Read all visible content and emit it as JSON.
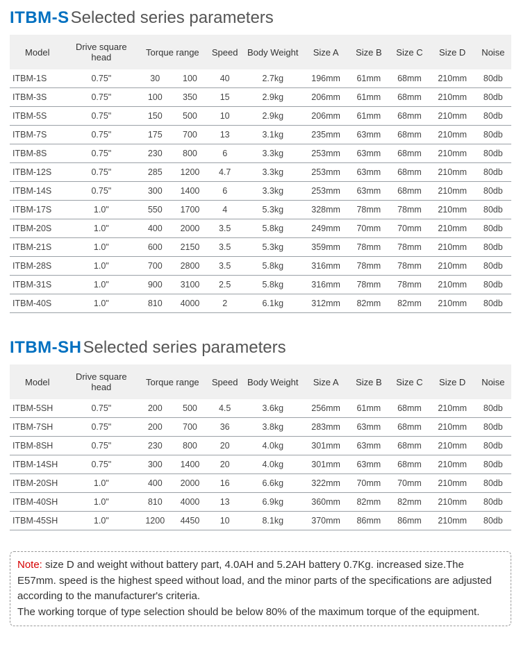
{
  "colors": {
    "heading_prefix": "#0070c0",
    "heading_suffix": "#555555",
    "header_bg": "#f0f0f0",
    "row_border": "#9aa0a6",
    "note_border": "#999999",
    "note_label": "#d60000",
    "text": "#333333"
  },
  "typography": {
    "heading_fontsize": 24,
    "table_fontsize": 13,
    "cell_fontsize": 12.5,
    "note_fontsize": 15
  },
  "columns": [
    "Model",
    "Drive square head",
    "Torque range",
    "Speed",
    "Body Weight",
    "Size A",
    "Size B",
    "Size C",
    "Size D",
    "Noise"
  ],
  "section1": {
    "prefix": "ITBM-S",
    "suffix": "Selected series parameters",
    "rows": [
      {
        "model": "ITBM-1S",
        "drive": "0.75\"",
        "tmin": "30",
        "tmax": "100",
        "speed": "40",
        "weight": "2.7kg",
        "a": "196mm",
        "b": "61mm",
        "c": "68mm",
        "d": "210mm",
        "noise": "80db"
      },
      {
        "model": "ITBM-3S",
        "drive": "0.75\"",
        "tmin": "100",
        "tmax": "350",
        "speed": "15",
        "weight": "2.9kg",
        "a": "206mm",
        "b": "61mm",
        "c": "68mm",
        "d": "210mm",
        "noise": "80db"
      },
      {
        "model": "ITBM-5S",
        "drive": "0.75\"",
        "tmin": "150",
        "tmax": "500",
        "speed": "10",
        "weight": "2.9kg",
        "a": "206mm",
        "b": "61mm",
        "c": "68mm",
        "d": "210mm",
        "noise": "80db"
      },
      {
        "model": "ITBM-7S",
        "drive": "0.75\"",
        "tmin": "175",
        "tmax": "700",
        "speed": "13",
        "weight": "3.1kg",
        "a": "235mm",
        "b": "63mm",
        "c": "68mm",
        "d": "210mm",
        "noise": "80db"
      },
      {
        "model": "ITBM-8S",
        "drive": "0.75\"",
        "tmin": "230",
        "tmax": "800",
        "speed": "6",
        "weight": "3.3kg",
        "a": "253mm",
        "b": "63mm",
        "c": "68mm",
        "d": "210mm",
        "noise": "80db"
      },
      {
        "model": "ITBM-12S",
        "drive": "0.75\"",
        "tmin": "285",
        "tmax": "1200",
        "speed": "4.7",
        "weight": "3.3kg",
        "a": "253mm",
        "b": "63mm",
        "c": "68mm",
        "d": "210mm",
        "noise": "80db"
      },
      {
        "model": "ITBM-14S",
        "drive": "0.75\"",
        "tmin": "300",
        "tmax": "1400",
        "speed": "6",
        "weight": "3.3kg",
        "a": "253mm",
        "b": "63mm",
        "c": "68mm",
        "d": "210mm",
        "noise": "80db"
      },
      {
        "model": "ITBM-17S",
        "drive": "1.0\"",
        "tmin": "550",
        "tmax": "1700",
        "speed": "4",
        "weight": "5.3kg",
        "a": "328mm",
        "b": "78mm",
        "c": "78mm",
        "d": "210mm",
        "noise": "80db"
      },
      {
        "model": "ITBM-20S",
        "drive": "1.0\"",
        "tmin": "400",
        "tmax": "2000",
        "speed": "3.5",
        "weight": "5.8kg",
        "a": "249mm",
        "b": "70mm",
        "c": "70mm",
        "d": "210mm",
        "noise": "80db"
      },
      {
        "model": "ITBM-21S",
        "drive": "1.0\"",
        "tmin": "600",
        "tmax": "2150",
        "speed": "3.5",
        "weight": "5.3kg",
        "a": "359mm",
        "b": "78mm",
        "c": "78mm",
        "d": "210mm",
        "noise": "80db"
      },
      {
        "model": "ITBM-28S",
        "drive": "1.0\"",
        "tmin": "700",
        "tmax": "2800",
        "speed": "3.5",
        "weight": "5.8kg",
        "a": "316mm",
        "b": "78mm",
        "c": "78mm",
        "d": "210mm",
        "noise": "80db"
      },
      {
        "model": "ITBM-31S",
        "drive": "1.0\"",
        "tmin": "900",
        "tmax": "3100",
        "speed": "2.5",
        "weight": "5.8kg",
        "a": "316mm",
        "b": "78mm",
        "c": "78mm",
        "d": "210mm",
        "noise": "80db"
      },
      {
        "model": "ITBM-40S",
        "drive": "1.0\"",
        "tmin": "810",
        "tmax": "4000",
        "speed": "2",
        "weight": "6.1kg",
        "a": "312mm",
        "b": "82mm",
        "c": "82mm",
        "d": "210mm",
        "noise": "80db"
      }
    ]
  },
  "section2": {
    "prefix": "ITBM-SH",
    "suffix": "Selected series parameters",
    "rows": [
      {
        "model": "ITBM-5SH",
        "drive": "0.75\"",
        "tmin": "200",
        "tmax": "500",
        "speed": "4.5",
        "weight": "3.6kg",
        "a": "256mm",
        "b": "61mm",
        "c": "68mm",
        "d": "210mm",
        "noise": "80db"
      },
      {
        "model": "ITBM-7SH",
        "drive": "0.75\"",
        "tmin": "200",
        "tmax": "700",
        "speed": "36",
        "weight": "3.8kg",
        "a": "283mm",
        "b": "63mm",
        "c": "68mm",
        "d": "210mm",
        "noise": "80db"
      },
      {
        "model": "ITBM-8SH",
        "drive": "0.75\"",
        "tmin": "230",
        "tmax": "800",
        "speed": "20",
        "weight": "4.0kg",
        "a": "301mm",
        "b": "63mm",
        "c": "68mm",
        "d": "210mm",
        "noise": "80db"
      },
      {
        "model": "ITBM-14SH",
        "drive": "0.75\"",
        "tmin": "300",
        "tmax": "1400",
        "speed": "20",
        "weight": "4.0kg",
        "a": "301mm",
        "b": "63mm",
        "c": "68mm",
        "d": "210mm",
        "noise": "80db"
      },
      {
        "model": "ITBM-20SH",
        "drive": "1.0\"",
        "tmin": "400",
        "tmax": "2000",
        "speed": "16",
        "weight": "6.6kg",
        "a": "322mm",
        "b": "70mm",
        "c": "70mm",
        "d": "210mm",
        "noise": "80db"
      },
      {
        "model": "ITBM-40SH",
        "drive": "1.0\"",
        "tmin": "810",
        "tmax": "4000",
        "speed": "13",
        "weight": "6.9kg",
        "a": "360mm",
        "b": "82mm",
        "c": "82mm",
        "d": "210mm",
        "noise": "80db"
      },
      {
        "model": "ITBM-45SH",
        "drive": "1.0\"",
        "tmin": "1200",
        "tmax": "4450",
        "speed": "10",
        "weight": "8.1kg",
        "a": "370mm",
        "b": "86mm",
        "c": "86mm",
        "d": "210mm",
        "noise": "80db"
      }
    ]
  },
  "note": {
    "label": "Note:",
    "line1": " size D and weight without battery part, 4.0AH and 5.2AH battery 0.7Kg. increased size.The E57mm. speed is the highest speed without load, and the minor parts of the specifications are adjusted according to the manufacturer's criteria.",
    "line2": "The working torque of type selection should be below 80% of the maximum torque of the equipment."
  }
}
